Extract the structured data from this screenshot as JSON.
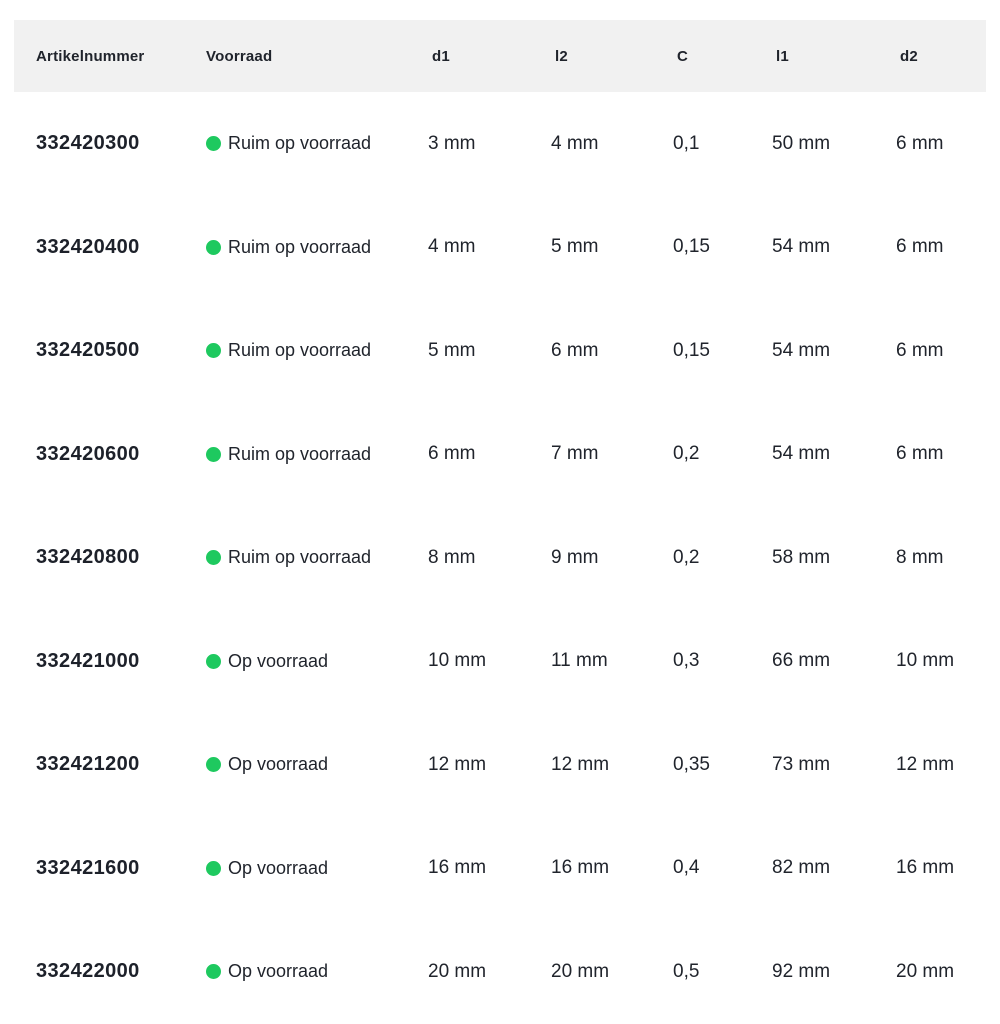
{
  "colors": {
    "in_stock_dot": "#1ec95f",
    "header_background": "#f1f1f1",
    "text_dark": "#20242c"
  },
  "table": {
    "columns": [
      {
        "key": "artikelnummer",
        "label": "Artikelnummer"
      },
      {
        "key": "voorraad",
        "label": "Voorraad"
      },
      {
        "key": "d1",
        "label": "d1"
      },
      {
        "key": "l2",
        "label": "l2"
      },
      {
        "key": "c",
        "label": "C"
      },
      {
        "key": "l1",
        "label": "l1"
      },
      {
        "key": "d2",
        "label": "d2"
      }
    ],
    "rows": [
      {
        "artikelnummer": "332420300",
        "voorraad": "Ruim op voorraad",
        "d1": "3 mm",
        "l2": "4 mm",
        "c": "0,1",
        "l1": "50 mm",
        "d2": "6 mm"
      },
      {
        "artikelnummer": "332420400",
        "voorraad": "Ruim op voorraad",
        "d1": "4 mm",
        "l2": "5 mm",
        "c": "0,15",
        "l1": "54 mm",
        "d2": "6 mm"
      },
      {
        "artikelnummer": "332420500",
        "voorraad": "Ruim op voorraad",
        "d1": "5 mm",
        "l2": "6 mm",
        "c": "0,15",
        "l1": "54 mm",
        "d2": "6 mm"
      },
      {
        "artikelnummer": "332420600",
        "voorraad": "Ruim op voorraad",
        "d1": "6 mm",
        "l2": "7 mm",
        "c": "0,2",
        "l1": "54 mm",
        "d2": "6 mm"
      },
      {
        "artikelnummer": "332420800",
        "voorraad": "Ruim op voorraad",
        "d1": "8 mm",
        "l2": "9 mm",
        "c": "0,2",
        "l1": "58 mm",
        "d2": "8 mm"
      },
      {
        "artikelnummer": "332421000",
        "voorraad": "Op voorraad",
        "d1": "10 mm",
        "l2": "11 mm",
        "c": "0,3",
        "l1": "66 mm",
        "d2": "10 mm"
      },
      {
        "artikelnummer": "332421200",
        "voorraad": "Op voorraad",
        "d1": "12 mm",
        "l2": "12 mm",
        "c": "0,35",
        "l1": "73 mm",
        "d2": "12 mm"
      },
      {
        "artikelnummer": "332421600",
        "voorraad": "Op voorraad",
        "d1": "16 mm",
        "l2": "16 mm",
        "c": "0,4",
        "l1": "82 mm",
        "d2": "16 mm"
      },
      {
        "artikelnummer": "332422000",
        "voorraad": "Op voorraad",
        "d1": "20 mm",
        "l2": "20 mm",
        "c": "0,5",
        "l1": "92 mm",
        "d2": "20 mm"
      }
    ]
  }
}
